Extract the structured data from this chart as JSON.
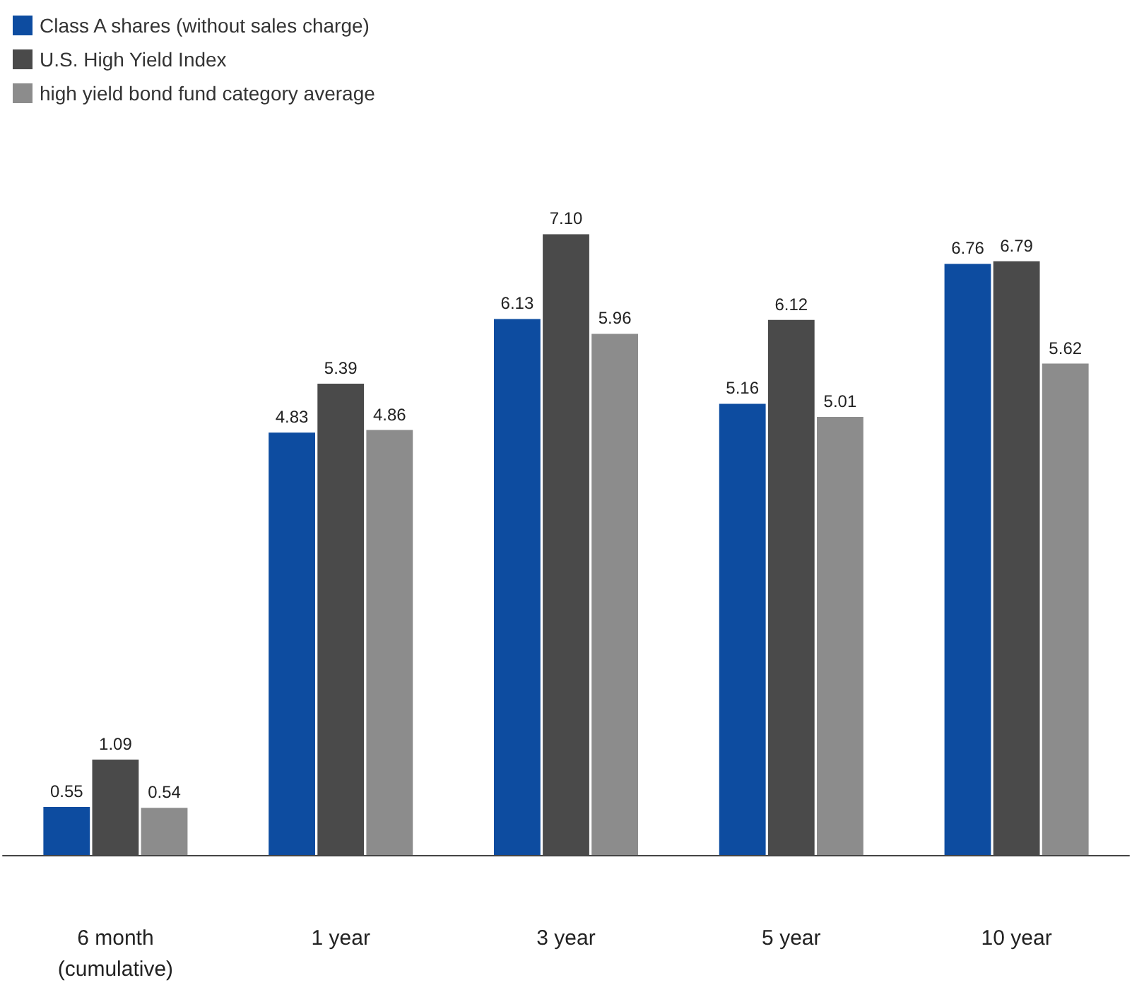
{
  "chart_data": {
    "type": "bar",
    "categories": [
      "6 month\n(cumulative)",
      "1 year",
      "3 year",
      "5 year",
      "10 year"
    ],
    "series": [
      {
        "name": "Class A shares (without sales charge)",
        "color": "#0d4ca0",
        "values": [
          0.55,
          4.83,
          6.13,
          5.16,
          6.76
        ],
        "value_labels": [
          "0.55",
          "4.83",
          "6.13",
          "5.16",
          "6.76"
        ]
      },
      {
        "name": "U.S. High Yield Index",
        "color": "#4a4a4a",
        "values": [
          1.09,
          5.39,
          7.1,
          6.12,
          6.79
        ],
        "value_labels": [
          "1.09",
          "5.39",
          "7.10",
          "6.12",
          "6.79"
        ]
      },
      {
        "name": "high yield bond fund category average",
        "color": "#8c8c8c",
        "values": [
          0.54,
          4.86,
          5.96,
          5.01,
          5.62
        ],
        "value_labels": [
          "0.54",
          "4.86",
          "5.96",
          "5.01",
          "5.62"
        ]
      }
    ],
    "legend": "top left"
  }
}
